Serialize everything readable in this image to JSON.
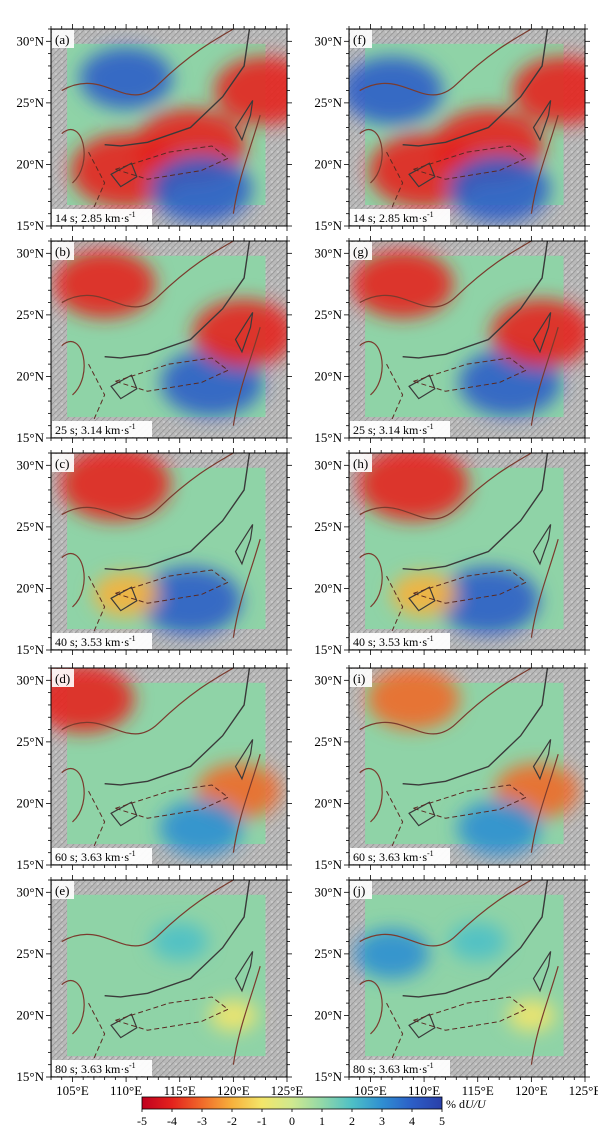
{
  "figure": {
    "colorbar": {
      "ticks": [
        "-5",
        "-4",
        "-3",
        "-2",
        "-1",
        "0",
        "1",
        "2",
        "3",
        "4",
        "5"
      ],
      "label_prefix": "% d",
      "label_italic": "U/U",
      "colors": [
        "#c0001e",
        "#e4221d",
        "#f06a2a",
        "#f7b13c",
        "#f3e66a",
        "#cfe98f",
        "#92d8a8",
        "#4ec0c6",
        "#2f8fd2",
        "#2c5ec7",
        "#2a3fa8"
      ]
    },
    "lat_ticks": [
      "30°N",
      "25°N",
      "20°N",
      "15°N"
    ],
    "lon_ticks": [
      "105°E",
      "110°E",
      "115°E",
      "120°E",
      "125°E"
    ]
  },
  "chart_data": [
    {
      "panel": "(a)",
      "type": "heatmap",
      "period_label": "14 s; 2.85 km·s",
      "superscript": "-1",
      "xlim": [
        103,
        125
      ],
      "ylim": [
        15,
        31
      ],
      "anomaly_regions": [
        {
          "lon": 110,
          "lat": 19.5,
          "value": -4.5
        },
        {
          "lon": 116,
          "lat": 21.5,
          "value": -4.5
        },
        {
          "lon": 110,
          "lat": 27,
          "value": 3.5
        },
        {
          "lon": 117,
          "lat": 18,
          "value": 4
        },
        {
          "lon": 123,
          "lat": 26,
          "value": -4
        }
      ]
    },
    {
      "panel": "(b)",
      "type": "heatmap",
      "period_label": "25 s; 3.14 km·s",
      "superscript": "-1",
      "xlim": [
        103,
        125
      ],
      "ylim": [
        15,
        31
      ],
      "anomaly_regions": [
        {
          "lon": 108,
          "lat": 27.5,
          "value": -4
        },
        {
          "lon": 118,
          "lat": 19.5,
          "value": 4
        },
        {
          "lon": 121,
          "lat": 23.5,
          "value": -4
        }
      ]
    },
    {
      "panel": "(c)",
      "type": "heatmap",
      "period_label": "40 s; 3.53 km·s",
      "superscript": "-1",
      "xlim": [
        103,
        125
      ],
      "ylim": [
        15,
        31
      ],
      "anomaly_regions": [
        {
          "lon": 109,
          "lat": 28.5,
          "value": -4.5
        },
        {
          "lon": 116,
          "lat": 19,
          "value": 4
        },
        {
          "lon": 110,
          "lat": 19.5,
          "value": -2
        }
      ]
    },
    {
      "panel": "(d)",
      "type": "heatmap",
      "period_label": "60 s; 3.63 km·s",
      "superscript": "-1",
      "xlim": [
        103,
        125
      ],
      "ylim": [
        15,
        31
      ],
      "anomaly_regions": [
        {
          "lon": 106,
          "lat": 28.5,
          "value": -4
        },
        {
          "lon": 120.5,
          "lat": 21,
          "value": -3
        },
        {
          "lon": 117,
          "lat": 18,
          "value": 3
        }
      ]
    },
    {
      "panel": "(e)",
      "type": "heatmap",
      "period_label": "80 s; 3.63 km·s",
      "superscript": "-1",
      "xlim": [
        103,
        125
      ],
      "ylim": [
        15,
        31
      ],
      "anomaly_regions": [
        {
          "lon": 115,
          "lat": 26,
          "value": 1.5
        },
        {
          "lon": 120,
          "lat": 20,
          "value": -1
        }
      ]
    },
    {
      "panel": "(f)",
      "type": "heatmap",
      "period_label": "14 s; 2.85 km·s",
      "superscript": "-1",
      "xlim": [
        103,
        125
      ],
      "ylim": [
        15,
        31
      ],
      "anomaly_regions": [
        {
          "lon": 110,
          "lat": 19.5,
          "value": -4.5
        },
        {
          "lon": 116,
          "lat": 21.5,
          "value": -4.5
        },
        {
          "lon": 107,
          "lat": 26,
          "value": 4
        },
        {
          "lon": 117,
          "lat": 18,
          "value": 4
        },
        {
          "lon": 123,
          "lat": 26,
          "value": -4
        }
      ]
    },
    {
      "panel": "(g)",
      "type": "heatmap",
      "period_label": "25 s; 3.14 km·s",
      "superscript": "-1",
      "xlim": [
        103,
        125
      ],
      "ylim": [
        15,
        31
      ],
      "anomaly_regions": [
        {
          "lon": 108,
          "lat": 27.5,
          "value": -4
        },
        {
          "lon": 118,
          "lat": 19.5,
          "value": 4
        },
        {
          "lon": 121,
          "lat": 23.5,
          "value": -4
        }
      ]
    },
    {
      "panel": "(h)",
      "type": "heatmap",
      "period_label": "40 s; 3.53 km·s",
      "superscript": "-1",
      "xlim": [
        103,
        125
      ],
      "ylim": [
        15,
        31
      ],
      "anomaly_regions": [
        {
          "lon": 109,
          "lat": 28.5,
          "value": -4.5
        },
        {
          "lon": 116,
          "lat": 19,
          "value": 4
        },
        {
          "lon": 110,
          "lat": 19.5,
          "value": -2
        }
      ]
    },
    {
      "panel": "(i)",
      "type": "heatmap",
      "period_label": "60 s; 3.63 km·s",
      "superscript": "-1",
      "xlim": [
        103,
        125
      ],
      "ylim": [
        15,
        31
      ],
      "anomaly_regions": [
        {
          "lon": 109,
          "lat": 28.5,
          "value": -3.5
        },
        {
          "lon": 120.5,
          "lat": 21,
          "value": -3
        },
        {
          "lon": 117,
          "lat": 18,
          "value": 3
        }
      ]
    },
    {
      "panel": "(j)",
      "type": "heatmap",
      "period_label": "80 s; 3.63 km·s",
      "superscript": "-1",
      "xlim": [
        103,
        125
      ],
      "ylim": [
        15,
        31
      ],
      "anomaly_regions": [
        {
          "lon": 107,
          "lat": 25,
          "value": 2.5
        },
        {
          "lon": 115,
          "lat": 26,
          "value": 1.5
        },
        {
          "lon": 120,
          "lat": 20,
          "value": -1
        }
      ]
    }
  ]
}
